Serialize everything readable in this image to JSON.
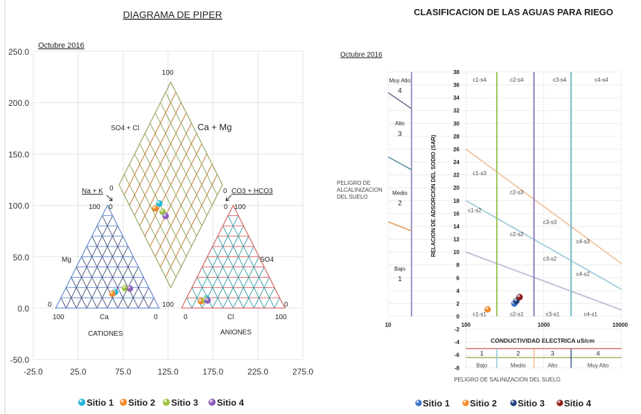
{
  "piper": {
    "title": "DIAGRAMA DE PIPER",
    "period": "Octubre 2016",
    "labels": {
      "diamond_top": "100",
      "so4_cl": "SO4 + Cl",
      "ca_mg": "Ca + Mg",
      "na_k": "Na + K",
      "co3_hco3": "CO3 + HCO3",
      "mg": "Mg",
      "so4": "SO4",
      "ca": "Ca",
      "cl": "Cl",
      "cationes": "CATIONES",
      "aniones": "ANIONES",
      "zero": "0",
      "hundred": "100"
    }
  },
  "riego": {
    "title": "CLASIFICACION DE LAS AGUAS PARA RIEGO",
    "period": "Octubre 2016",
    "alcalinizacion_title": [
      "PELIGRO  DE",
      "ALCALINIZACION",
      "DEL SUELO"
    ],
    "sodio_levels": [
      {
        "name": "Muy Alto",
        "num": "4"
      },
      {
        "name": "Alto",
        "num": "3"
      },
      {
        "name": "Medio",
        "num": "2"
      },
      {
        "name": "Bajo",
        "num": "1"
      }
    ],
    "ylabel": "RELACION DE ADSORCION DEL SODIO (SAR)",
    "xlabel": "CONDUCTIVIDAD ELECTRICA uS/cm",
    "salinizacion_title": "PELIGRO  DE  SALINIZACION  DEL  SUELO",
    "salinity_levels": [
      {
        "num": "1",
        "name": "Bajo"
      },
      {
        "num": "2",
        "name": "Medio"
      },
      {
        "num": "3",
        "name": "Alto"
      },
      {
        "num": "4",
        "name": "Muy Alto"
      }
    ],
    "zones": [
      "c1-s4",
      "c2-s4",
      "c3-s4",
      "c4-s4",
      "c1-s3",
      "c2-s3",
      "c3-s3",
      "c4-s3",
      "c1-s2",
      "c2-s2",
      "c3-s2",
      "c4-s2",
      "c1-s1",
      "c2-s1",
      "c3-s1",
      "c4-s1"
    ]
  },
  "chart_data": [
    {
      "type": "scatter",
      "title": "DIAGRAMA DE PIPER",
      "xlim": [
        -25,
        275
      ],
      "ylim": [
        -50,
        250
      ],
      "xticks": [
        "-25.0",
        "25.0",
        "75.0",
        "125.0",
        "175.0",
        "225.0",
        "275.0"
      ],
      "yticks": [
        "-50.0",
        "0.0",
        "50.0",
        "100.0",
        "150.0",
        "200.0",
        "250.0"
      ],
      "grid": true,
      "legend": "bottom",
      "series": [
        {
          "name": "Sitio 1",
          "color": "#22b4d8",
          "points": [
            [
              66,
              15.5
            ],
            [
              167.8,
              9.4
            ],
            [
              115.3,
              101.8
            ]
          ]
        },
        {
          "name": "Sitio 2",
          "color": "#f0892a",
          "points": [
            [
              63,
              14
            ],
            [
              161.6,
              6.7
            ],
            [
              110.7,
              97
            ]
          ]
        },
        {
          "name": "Sitio 3",
          "color": "#9cc23e",
          "points": [
            [
              77,
              19.5
            ],
            [
              166.5,
              8
            ],
            [
              119,
              93.7
            ]
          ]
        },
        {
          "name": "Sitio 4",
          "color": "#8c5fb9",
          "points": [
            [
              82.5,
              19
            ],
            [
              169,
              7.4
            ],
            [
              122.3,
              89.6
            ]
          ]
        }
      ]
    },
    {
      "type": "scatter",
      "title": "CLASIFICACION DE LAS AGUAS PARA RIEGO",
      "xlabel": "CONDUCTIVIDAD ELECTRICA uS/cm",
      "ylabel": "RELACION DE ADSORCION DEL SODIO (SAR)",
      "xscale": "log",
      "xlim": [
        10,
        10000
      ],
      "ylim": [
        -8,
        38
      ],
      "xticks": [
        "10",
        "100",
        "1000",
        "10000"
      ],
      "yticks": [
        "-8",
        "-6",
        "-4",
        "-2",
        "0",
        "2",
        "4",
        "6",
        "8",
        "10",
        "12",
        "14",
        "16",
        "18",
        "20",
        "22",
        "24",
        "26",
        "28",
        "30",
        "32",
        "34",
        "36",
        "38"
      ],
      "grid": true,
      "legend": "bottom",
      "boundaries": {
        "s4_s3": [
          [
            100,
            26
          ],
          [
            10000,
            8.2
          ]
        ],
        "s3_s2": [
          [
            100,
            18
          ],
          [
            10000,
            4.2
          ]
        ],
        "s2_s1": [
          [
            100,
            10
          ],
          [
            10000,
            1
          ]
        ],
        "conductivity": [
          250,
          750,
          2250
        ]
      },
      "series": [
        {
          "name": "Sitio 1",
          "color": "#3b73c6",
          "x": [
            420
          ],
          "y": [
            2.0
          ]
        },
        {
          "name": "Sitio 2",
          "color": "#f0892a",
          "x": [
            190
          ],
          "y": [
            1.1
          ]
        },
        {
          "name": "Sitio 3",
          "color": "#1f3f7a",
          "x": [
            445
          ],
          "y": [
            2.4
          ]
        },
        {
          "name": "Sitio 4",
          "color": "#8b1c1c",
          "x": [
            490
          ],
          "y": [
            3.0
          ]
        }
      ]
    }
  ]
}
